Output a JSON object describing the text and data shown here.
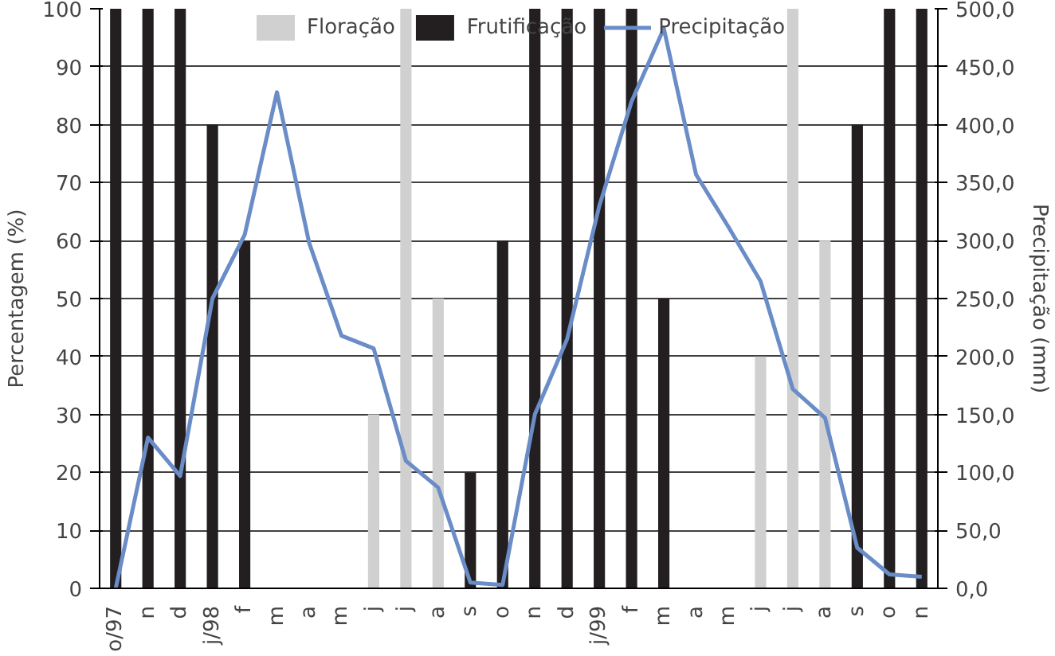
{
  "chart_data": {
    "type": "bar",
    "categories": [
      "o/97",
      "n",
      "d",
      "j/98",
      "f",
      "m",
      "a",
      "m",
      "j",
      "j",
      "a",
      "s",
      "o",
      "n",
      "d",
      "j/99",
      "f",
      "m",
      "a",
      "m",
      "j",
      "j",
      "a",
      "s",
      "o",
      "n"
    ],
    "series": [
      {
        "name": "Floração",
        "color": "#d0d0d0",
        "values": [
          null,
          null,
          null,
          null,
          null,
          null,
          null,
          null,
          30,
          100,
          50,
          null,
          null,
          null,
          null,
          null,
          null,
          null,
          null,
          null,
          40,
          100,
          60,
          null,
          null,
          null
        ]
      },
      {
        "name": "Frutificação",
        "color": "#231f20",
        "values": [
          100,
          100,
          100,
          80,
          60,
          null,
          null,
          null,
          null,
          null,
          null,
          20,
          60,
          100,
          100,
          100,
          100,
          50,
          null,
          null,
          null,
          null,
          null,
          80,
          100,
          100
        ]
      },
      {
        "name": "Precipitação",
        "type": "line",
        "axis": "y2",
        "color": "#6a8cc7",
        "values": [
          0,
          130,
          97,
          250,
          305,
          428,
          298,
          218,
          207,
          110,
          87,
          5,
          3,
          150,
          215,
          330,
          420,
          483,
          357,
          312,
          265,
          172,
          147,
          35,
          12,
          10
        ]
      }
    ],
    "ylabel": "Percentagem (%)",
    "y2label": "Precipitação (mm)",
    "ylim": [
      0,
      100
    ],
    "yticks": [
      0,
      10,
      20,
      30,
      40,
      50,
      60,
      70,
      80,
      90,
      100
    ],
    "y2lim": [
      0,
      500
    ],
    "y2ticks": [
      {
        "value": 0,
        "label": "0,0"
      },
      {
        "value": 50,
        "label": "50,0"
      },
      {
        "value": 100,
        "label": "100,0"
      },
      {
        "value": 150,
        "label": "150,0"
      },
      {
        "value": 200,
        "label": "200,0"
      },
      {
        "value": 250,
        "label": "250,0"
      },
      {
        "value": 300,
        "label": "300,0"
      },
      {
        "value": 350,
        "label": "350,0"
      },
      {
        "value": 400,
        "label": "400,0"
      },
      {
        "value": 450,
        "label": "450,0"
      },
      {
        "value": 500,
        "label": "500,0"
      }
    ],
    "grid": "y",
    "legend": "top"
  }
}
